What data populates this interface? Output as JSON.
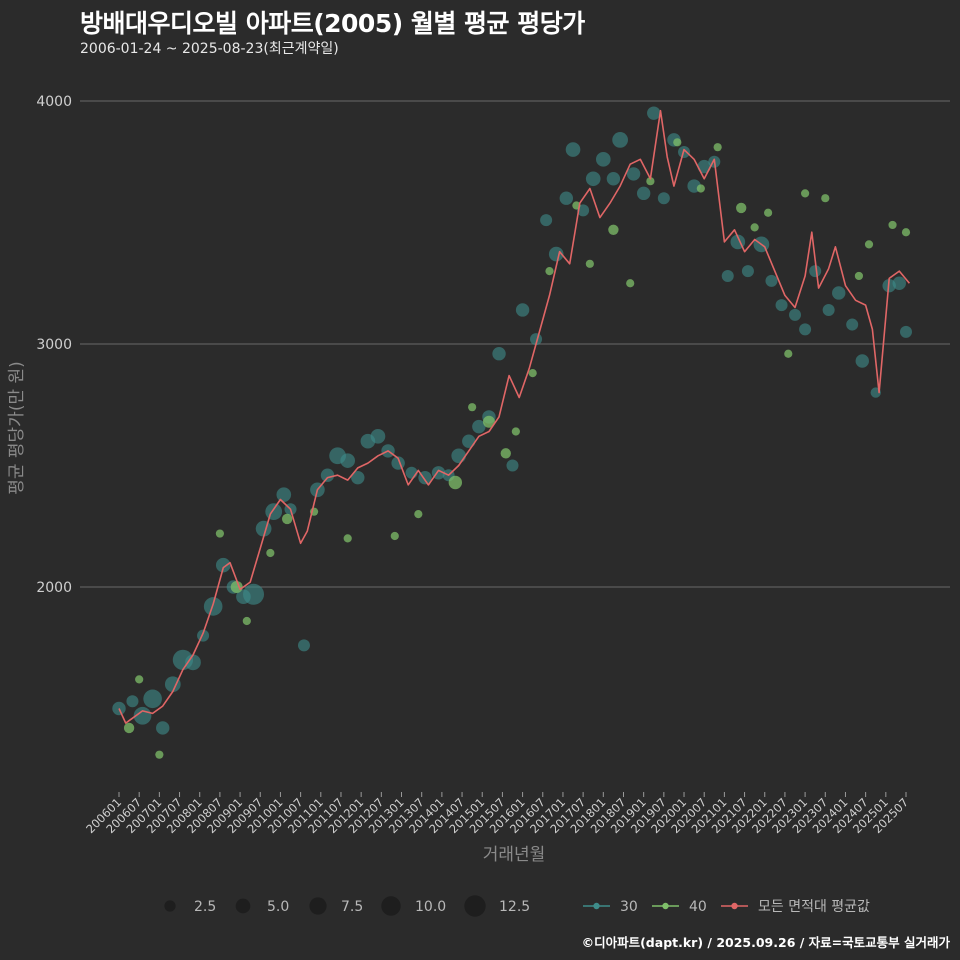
{
  "title": "방배대우디오빌 아파트(2005) 월별 평균 평당가",
  "subtitle": "2006-01-24 ~ 2025-08-23(최근계약일)",
  "caption": "©디아파트(dapt.kr) / 2025.09.26 / 자료=국토교통부 실거래가",
  "colors": {
    "background": "#2b2b2b",
    "grid": "#6a6a6a",
    "series_30": "#3e8c8a",
    "series_40": "#7fbf6a",
    "avg_line": "#e06666"
  },
  "chart_data": {
    "type": "line",
    "xlabel": "거래년월",
    "ylabel": "평균 평당가(만 원)",
    "ylim": [
      1300,
      4150
    ],
    "yticks": [
      2000,
      3000,
      4000
    ],
    "xlim": [
      "2006-01",
      "2025-08"
    ],
    "xticks": [
      "200601",
      "200607",
      "200701",
      "200707",
      "200801",
      "200807",
      "200901",
      "200907",
      "201001",
      "201007",
      "201101",
      "201107",
      "201201",
      "201207",
      "201301",
      "201307",
      "201401",
      "201407",
      "201501",
      "201507",
      "201601",
      "201607",
      "201701",
      "201707",
      "201801",
      "201807",
      "201901",
      "201907",
      "202001",
      "202007",
      "202101",
      "202107",
      "202201",
      "202207",
      "202301",
      "202307",
      "202401",
      "202407",
      "202501",
      "202507"
    ],
    "size_legend": {
      "title": "",
      "values": [
        2.5,
        5.0,
        7.5,
        10.0,
        12.5
      ],
      "labels": [
        "2.5",
        "5.0",
        "7.5",
        "10.0",
        "12.5"
      ]
    },
    "series_legend": [
      {
        "name": "30",
        "type": "point"
      },
      {
        "name": "40",
        "type": "point"
      },
      {
        "name": "모든 면적대 평균값",
        "type": "line"
      }
    ],
    "avg_line": {
      "name": "모든 면적대 평균값",
      "points": [
        [
          "2006-01",
          1500
        ],
        [
          "2006-03",
          1440
        ],
        [
          "2006-05",
          1460
        ],
        [
          "2006-08",
          1490
        ],
        [
          "2006-11",
          1480
        ],
        [
          "2007-02",
          1510
        ],
        [
          "2007-05",
          1570
        ],
        [
          "2007-08",
          1660
        ],
        [
          "2007-11",
          1720
        ],
        [
          "2008-02",
          1810
        ],
        [
          "2008-05",
          1930
        ],
        [
          "2008-08",
          2080
        ],
        [
          "2008-10",
          2100
        ],
        [
          "2009-01",
          1990
        ],
        [
          "2009-04",
          2020
        ],
        [
          "2009-07",
          2160
        ],
        [
          "2009-10",
          2300
        ],
        [
          "2010-01",
          2360
        ],
        [
          "2010-04",
          2320
        ],
        [
          "2010-07",
          2180
        ],
        [
          "2010-09",
          2230
        ],
        [
          "2010-12",
          2400
        ],
        [
          "2011-03",
          2450
        ],
        [
          "2011-06",
          2460
        ],
        [
          "2011-09",
          2440
        ],
        [
          "2011-12",
          2490
        ],
        [
          "2012-03",
          2510
        ],
        [
          "2012-06",
          2540
        ],
        [
          "2012-09",
          2560
        ],
        [
          "2012-12",
          2530
        ],
        [
          "2013-03",
          2420
        ],
        [
          "2013-06",
          2480
        ],
        [
          "2013-09",
          2420
        ],
        [
          "2013-12",
          2480
        ],
        [
          "2014-03",
          2460
        ],
        [
          "2014-06",
          2500
        ],
        [
          "2014-09",
          2560
        ],
        [
          "2014-12",
          2620
        ],
        [
          "2015-03",
          2640
        ],
        [
          "2015-06",
          2700
        ],
        [
          "2015-09",
          2870
        ],
        [
          "2015-12",
          2780
        ],
        [
          "2016-03",
          2900
        ],
        [
          "2016-06",
          3050
        ],
        [
          "2016-09",
          3200
        ],
        [
          "2016-12",
          3380
        ],
        [
          "2017-03",
          3330
        ],
        [
          "2017-06",
          3580
        ],
        [
          "2017-09",
          3640
        ],
        [
          "2017-12",
          3520
        ],
        [
          "2018-03",
          3580
        ],
        [
          "2018-06",
          3650
        ],
        [
          "2018-09",
          3740
        ],
        [
          "2018-12",
          3760
        ],
        [
          "2019-03",
          3680
        ],
        [
          "2019-06",
          3960
        ],
        [
          "2019-08",
          3770
        ],
        [
          "2019-10",
          3650
        ],
        [
          "2020-01",
          3800
        ],
        [
          "2020-04",
          3760
        ],
        [
          "2020-07",
          3680
        ],
        [
          "2020-10",
          3760
        ],
        [
          "2021-01",
          3420
        ],
        [
          "2021-04",
          3470
        ],
        [
          "2021-07",
          3380
        ],
        [
          "2021-10",
          3430
        ],
        [
          "2022-01",
          3400
        ],
        [
          "2022-04",
          3300
        ],
        [
          "2022-07",
          3200
        ],
        [
          "2022-10",
          3150
        ],
        [
          "2023-01",
          3280
        ],
        [
          "2023-03",
          3460
        ],
        [
          "2023-05",
          3230
        ],
        [
          "2023-08",
          3310
        ],
        [
          "2023-10",
          3400
        ],
        [
          "2024-01",
          3240
        ],
        [
          "2024-04",
          3180
        ],
        [
          "2024-07",
          3160
        ],
        [
          "2024-09",
          3060
        ],
        [
          "2024-11",
          2800
        ],
        [
          "2025-02",
          3270
        ],
        [
          "2025-05",
          3300
        ],
        [
          "2025-08",
          3250
        ]
      ]
    },
    "series": [
      {
        "name": "30",
        "points": [
          [
            "2006-01",
            1500,
            4
          ],
          [
            "2006-05",
            1530,
            3
          ],
          [
            "2006-08",
            1470,
            8
          ],
          [
            "2006-11",
            1540,
            9
          ],
          [
            "2007-02",
            1420,
            4
          ],
          [
            "2007-05",
            1600,
            6
          ],
          [
            "2007-08",
            1700,
            11
          ],
          [
            "2007-11",
            1690,
            6
          ],
          [
            "2008-02",
            1800,
            3
          ],
          [
            "2008-05",
            1920,
            9
          ],
          [
            "2008-08",
            2090,
            5
          ],
          [
            "2008-11",
            2000,
            4
          ],
          [
            "2009-02",
            1960,
            5
          ],
          [
            "2009-05",
            1970,
            12
          ],
          [
            "2009-08",
            2240,
            6
          ],
          [
            "2009-11",
            2310,
            7
          ],
          [
            "2010-02",
            2380,
            5
          ],
          [
            "2010-04",
            2320,
            3
          ],
          [
            "2010-08",
            1760,
            3
          ],
          [
            "2010-12",
            2400,
            5
          ],
          [
            "2011-03",
            2460,
            4
          ],
          [
            "2011-06",
            2540,
            7
          ],
          [
            "2011-09",
            2520,
            5
          ],
          [
            "2011-12",
            2450,
            4
          ],
          [
            "2012-03",
            2600,
            5
          ],
          [
            "2012-06",
            2620,
            5
          ],
          [
            "2012-09",
            2560,
            4
          ],
          [
            "2012-12",
            2510,
            4
          ],
          [
            "2013-04",
            2470,
            3
          ],
          [
            "2013-08",
            2450,
            4
          ],
          [
            "2013-12",
            2470,
            4
          ],
          [
            "2014-03",
            2460,
            3
          ],
          [
            "2014-06",
            2540,
            5
          ],
          [
            "2014-09",
            2600,
            4
          ],
          [
            "2014-12",
            2660,
            4
          ],
          [
            "2015-03",
            2700,
            4
          ],
          [
            "2015-06",
            2960,
            4
          ],
          [
            "2015-10",
            2500,
            3
          ],
          [
            "2016-01",
            3140,
            4
          ],
          [
            "2016-05",
            3020,
            3
          ],
          [
            "2016-08",
            3510,
            3
          ],
          [
            "2016-11",
            3370,
            5
          ],
          [
            "2017-02",
            3600,
            4
          ],
          [
            "2017-04",
            3800,
            5
          ],
          [
            "2017-07",
            3550,
            3
          ],
          [
            "2017-10",
            3680,
            5
          ],
          [
            "2018-01",
            3760,
            5
          ],
          [
            "2018-04",
            3680,
            4
          ],
          [
            "2018-06",
            3840,
            6
          ],
          [
            "2018-10",
            3700,
            4
          ],
          [
            "2019-01",
            3620,
            4
          ],
          [
            "2019-04",
            3950,
            4
          ],
          [
            "2019-07",
            3600,
            3
          ],
          [
            "2019-10",
            3840,
            4
          ],
          [
            "2020-01",
            3790,
            3
          ],
          [
            "2020-04",
            3650,
            4
          ],
          [
            "2020-07",
            3730,
            4
          ],
          [
            "2020-10",
            3750,
            3
          ],
          [
            "2021-02",
            3280,
            3
          ],
          [
            "2021-05",
            3420,
            5
          ],
          [
            "2021-08",
            3300,
            3
          ],
          [
            "2021-12",
            3410,
            6
          ],
          [
            "2022-03",
            3260,
            3
          ],
          [
            "2022-06",
            3160,
            3
          ],
          [
            "2022-10",
            3120,
            3
          ],
          [
            "2023-01",
            3060,
            3
          ],
          [
            "2023-04",
            3300,
            3
          ],
          [
            "2023-08",
            3140,
            3
          ],
          [
            "2023-11",
            3210,
            4
          ],
          [
            "2024-03",
            3080,
            3
          ],
          [
            "2024-06",
            2930,
            4
          ],
          [
            "2024-10",
            2800,
            2
          ],
          [
            "2025-02",
            3240,
            4
          ],
          [
            "2025-05",
            3250,
            4
          ],
          [
            "2025-07",
            3050,
            3
          ]
        ]
      },
      {
        "name": "40",
        "points": [
          [
            "2006-04",
            1420,
            2
          ],
          [
            "2006-07",
            1620,
            1
          ],
          [
            "2007-01",
            1310,
            1
          ],
          [
            "2008-07",
            2220,
            1
          ],
          [
            "2008-12",
            2000,
            3
          ],
          [
            "2009-03",
            1860,
            1
          ],
          [
            "2009-10",
            2140,
            1
          ],
          [
            "2010-03",
            2280,
            2
          ],
          [
            "2010-11",
            2310,
            1
          ],
          [
            "2011-09",
            2200,
            1
          ],
          [
            "2012-11",
            2210,
            1
          ],
          [
            "2013-06",
            2300,
            1
          ],
          [
            "2014-05",
            2430,
            4
          ],
          [
            "2014-10",
            2740,
            1
          ],
          [
            "2015-03",
            2680,
            3
          ],
          [
            "2015-08",
            2550,
            2
          ],
          [
            "2015-11",
            2640,
            1
          ],
          [
            "2016-04",
            2880,
            1
          ],
          [
            "2016-09",
            3300,
            1
          ],
          [
            "2017-05",
            3570,
            1
          ],
          [
            "2017-09",
            3330,
            1
          ],
          [
            "2018-04",
            3470,
            2
          ],
          [
            "2018-09",
            3250,
            1
          ],
          [
            "2019-03",
            3670,
            1
          ],
          [
            "2019-11",
            3830,
            1
          ],
          [
            "2020-06",
            3640,
            1
          ],
          [
            "2020-11",
            3810,
            1
          ],
          [
            "2021-06",
            3560,
            2
          ],
          [
            "2021-10",
            3480,
            1
          ],
          [
            "2022-02",
            3540,
            1
          ],
          [
            "2022-08",
            2960,
            1
          ],
          [
            "2023-01",
            3620,
            1
          ],
          [
            "2023-07",
            3600,
            1
          ],
          [
            "2024-05",
            3280,
            1
          ],
          [
            "2024-08",
            3410,
            1
          ],
          [
            "2025-03",
            3490,
            1
          ],
          [
            "2025-07",
            3460,
            1
          ]
        ]
      }
    ]
  }
}
